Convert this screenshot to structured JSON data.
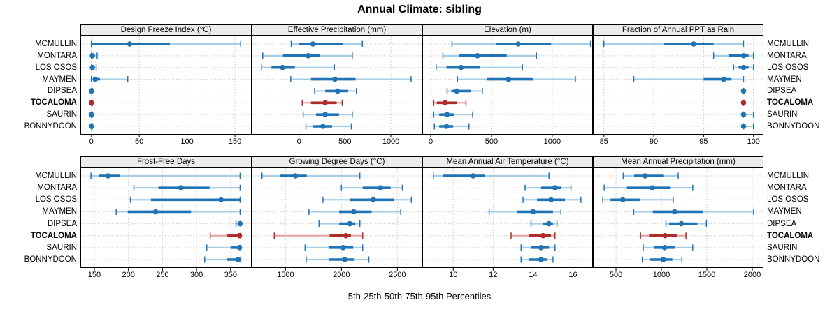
{
  "title": "Annual Climate: sibling",
  "xlabel": "5th-25th-50th-75th-95th Percentiles",
  "sites": [
    "MCMULLIN",
    "MONTARA",
    "LOS OSOS",
    "MAYMEN",
    "DIPSEA",
    "TOCALOMA",
    "SAURIN",
    "BONNYDOON"
  ],
  "highlight_site": "TOCALOMA",
  "colors": {
    "series": "#2073b4",
    "series_light": "#a8cde6",
    "highlight": "#b02c2a",
    "highlight_light": "#e3a9a8",
    "strip_bg": "#ececec",
    "grid": "#c9c9c9",
    "border": "#000000"
  },
  "chart_data": {
    "type": "dotplot",
    "layout": "2 rows x 4 columns trellis, percentile whisker rows per site",
    "percentiles": [
      5,
      25,
      50,
      75,
      95
    ],
    "title": "Annual Climate: sibling",
    "xlabel": "5th-25th-50th-75th-95th Percentiles",
    "sites": [
      "MCMULLIN",
      "MONTARA",
      "LOS OSOS",
      "MAYMEN",
      "DIPSEA",
      "TOCALOMA",
      "SAURIN",
      "BONNYDOON"
    ],
    "highlight_site": "TOCALOMA",
    "panels": [
      {
        "title": "Design Freeze Index (°C)",
        "ticks": [
          0,
          50,
          100,
          150
        ],
        "domain": [
          -11.5,
          167.5
        ],
        "values": [
          [
            0,
            1,
            40,
            82,
            156
          ],
          [
            0,
            0,
            1,
            3,
            6
          ],
          [
            0,
            0,
            1,
            3,
            5
          ],
          [
            0,
            2,
            4,
            9,
            38
          ],
          [
            0,
            0,
            0,
            0,
            1
          ],
          [
            0,
            0,
            0,
            0,
            1
          ],
          [
            0,
            0,
            0,
            0,
            1
          ],
          [
            0,
            0,
            0,
            0,
            1
          ]
        ]
      },
      {
        "title": "Effective Precipitation (mm)",
        "ticks": [
          0,
          500,
          1000
        ],
        "domain": [
          -515,
          1342
        ],
        "values": [
          [
            -85,
            0,
            150,
            480,
            690
          ],
          [
            -395,
            -175,
            100,
            230,
            580
          ],
          [
            -410,
            -300,
            -180,
            -45,
            385
          ],
          [
            -90,
            130,
            390,
            615,
            1220
          ],
          [
            170,
            285,
            420,
            535,
            625
          ],
          [
            35,
            130,
            285,
            410,
            470
          ],
          [
            45,
            185,
            285,
            435,
            580
          ],
          [
            75,
            155,
            260,
            360,
            570
          ]
        ]
      },
      {
        "title": "Elevation (m)",
        "ticks": [
          0,
          500,
          1000
        ],
        "domain": [
          -69,
          1334
        ],
        "values": [
          [
            175,
            540,
            720,
            990,
            1315
          ],
          [
            100,
            235,
            385,
            625,
            870
          ],
          [
            45,
            130,
            250,
            405,
            755
          ],
          [
            220,
            460,
            640,
            845,
            1190
          ],
          [
            135,
            170,
            215,
            330,
            425
          ],
          [
            25,
            50,
            120,
            215,
            290
          ],
          [
            25,
            70,
            135,
            195,
            345
          ],
          [
            30,
            70,
            130,
            185,
            315
          ]
        ]
      },
      {
        "title": "Fraction of Annual PPT as Rain",
        "ticks": [
          85,
          90,
          95,
          100
        ],
        "domain": [
          83.9,
          101
        ],
        "values": [
          [
            85,
            91,
            94,
            96,
            99
          ],
          [
            96,
            97.5,
            99,
            99.5,
            100
          ],
          [
            98,
            98.5,
            99,
            99.5,
            100
          ],
          [
            88,
            95,
            97,
            97.8,
            99
          ],
          [
            99,
            99,
            99,
            99,
            99
          ],
          [
            99,
            99,
            99,
            99,
            99
          ],
          [
            99,
            99,
            99,
            99,
            100
          ],
          [
            99,
            99,
            99,
            99,
            100
          ]
        ]
      },
      {
        "title": "Frost-Free Days",
        "ticks": [
          150,
          200,
          250,
          300,
          350
        ],
        "domain": [
          129.5,
          381
        ],
        "values": [
          [
            145,
            157,
            170,
            188,
            364
          ],
          [
            208,
            244,
            277,
            319,
            364
          ],
          [
            203,
            233,
            336,
            364,
            364
          ],
          [
            182,
            199,
            240,
            292,
            364
          ],
          [
            358,
            362,
            364,
            365,
            365
          ],
          [
            320,
            345,
            363,
            365,
            365
          ],
          [
            315,
            350,
            363,
            365,
            365
          ],
          [
            312,
            345,
            361,
            365,
            365
          ]
        ]
      },
      {
        "title": "Growing Degree Days (°C)",
        "ticks": [
          1500,
          2000,
          2500
        ],
        "domain": [
          1198,
          2723
        ],
        "values": [
          [
            1290,
            1450,
            1590,
            1690,
            2165
          ],
          [
            2000,
            2190,
            2350,
            2440,
            2545
          ],
          [
            1835,
            2075,
            2285,
            2470,
            2625
          ],
          [
            1710,
            1980,
            2110,
            2270,
            2530
          ],
          [
            1800,
            1980,
            2075,
            2125,
            2165
          ],
          [
            1400,
            1895,
            2040,
            2085,
            2190
          ],
          [
            1675,
            1885,
            2015,
            2105,
            2190
          ],
          [
            1685,
            1885,
            2030,
            2115,
            2245
          ]
        ]
      },
      {
        "title": "Mean Annual Air Temperature (°C)",
        "ticks": [
          10,
          12,
          14,
          16
        ],
        "domain": [
          8.45,
          17
        ],
        "values": [
          [
            9,
            9.5,
            11,
            11.6,
            14.8
          ],
          [
            13.6,
            14.4,
            15.1,
            15.4,
            15.9
          ],
          [
            13.5,
            14.2,
            14.9,
            15.6,
            16.4
          ],
          [
            11.8,
            13.2,
            14,
            15,
            15.4
          ],
          [
            13.9,
            14.5,
            14.8,
            15,
            15.2
          ],
          [
            12.9,
            13.8,
            14.5,
            14.9,
            15.1
          ],
          [
            13.4,
            13.9,
            14.4,
            14.8,
            15.1
          ],
          [
            13.4,
            13.8,
            14.4,
            14.7,
            15
          ]
        ]
      },
      {
        "title": "Mean Annual Precipitation (mm)",
        "ticks": [
          500,
          1000,
          1500,
          2000
        ],
        "domain": [
          246,
          2123
        ],
        "values": [
          [
            580,
            700,
            820,
            1020,
            1185
          ],
          [
            370,
            620,
            900,
            1095,
            1345
          ],
          [
            355,
            440,
            575,
            760,
            1130
          ],
          [
            695,
            905,
            1145,
            1455,
            2015
          ],
          [
            1050,
            1085,
            1220,
            1395,
            1495
          ],
          [
            770,
            865,
            1040,
            1170,
            1270
          ],
          [
            800,
            915,
            1035,
            1145,
            1345
          ],
          [
            790,
            875,
            1020,
            1120,
            1225
          ]
        ]
      }
    ]
  }
}
